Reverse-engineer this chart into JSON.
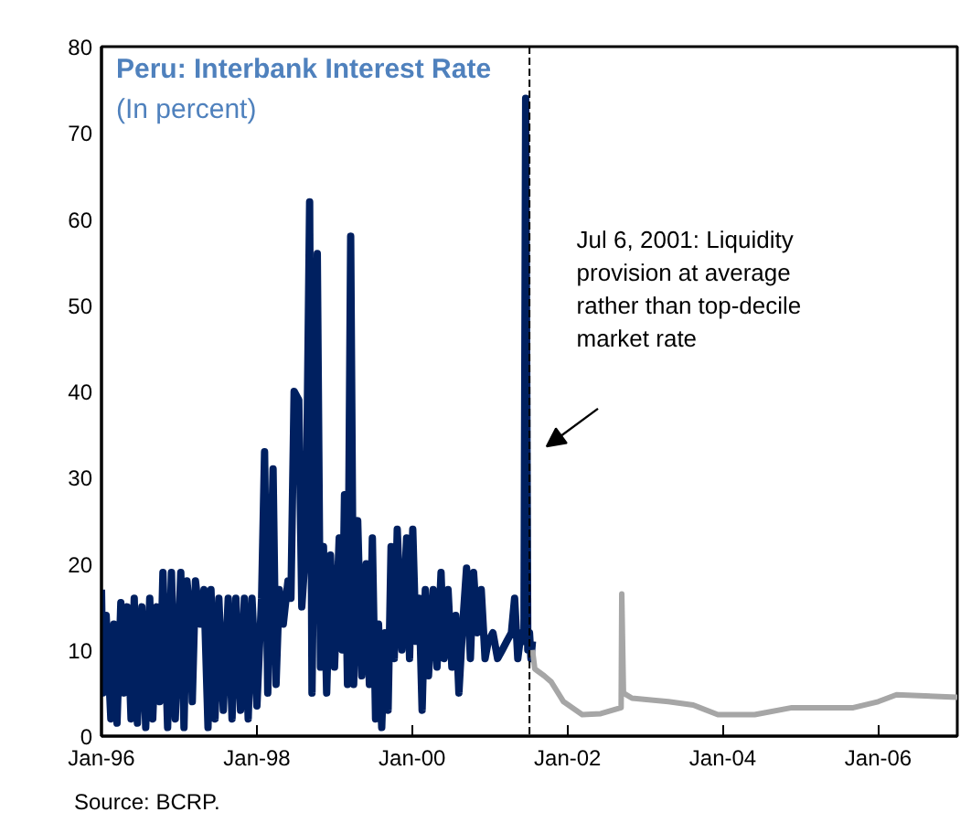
{
  "chart_data": {
    "type": "line",
    "title": "Peru: Interbank Interest Rate",
    "subtitle": "(In percent)",
    "annotations": [
      "Source: BCRP."
    ],
    "xlim": [
      "1996-01-01",
      "2007-01-08"
    ],
    "ylim": [
      0,
      80
    ],
    "xticks": [
      {
        "value": "1996-01-01",
        "label": "Jan-96"
      },
      {
        "value": "1998-01-01",
        "label": "Jan-98"
      },
      {
        "value": "2000-01-01",
        "label": "Jan-00"
      },
      {
        "value": "2002-01-01",
        "label": "Jan-02"
      },
      {
        "value": "2004-01-01",
        "label": "Jan-04"
      },
      {
        "value": "2006-01-01",
        "label": "Jan-06"
      }
    ],
    "yticks": [
      0,
      10,
      20,
      30,
      40,
      50,
      60,
      70,
      80
    ],
    "ref_lines": [
      {
        "axis": "x",
        "value": "2001-07-06",
        "label": "Jul 6, 2001: Liquidity provision at average rather than top-decile market rate",
        "color": "#000000",
        "line_style": "dashed"
      }
    ],
    "series": [
      {
        "color": "#002060",
        "x": [
          "1996-01-01",
          "1996-01-08",
          "1996-01-23",
          "1996-02-14",
          "1996-02-28",
          "1996-03-14",
          "1996-04-01",
          "1996-04-16",
          "1996-05-01",
          "1996-05-19",
          "1996-06-03",
          "1996-06-18",
          "1996-07-09",
          "1996-07-27",
          "1996-08-15",
          "1996-08-29",
          "1996-09-17",
          "1996-10-01",
          "1996-10-16",
          "1996-11-07",
          "1996-11-25",
          "1996-12-13",
          "1997-01-08",
          "1997-01-23",
          "1997-02-06",
          "1997-02-21",
          "1997-03-03",
          "1997-03-18",
          "1997-04-09",
          "1997-04-27",
          "1997-05-16",
          "1997-05-30",
          "1997-06-18",
          "1997-07-06",
          "1997-07-27",
          "1997-08-19",
          "1997-09-06",
          "1997-09-24",
          "1997-10-16",
          "1997-11-03",
          "1997-11-21",
          "1997-12-09",
          "1998-01-01",
          "1998-01-23",
          "1998-02-06",
          "1998-02-21",
          "1998-03-18",
          "1998-04-01",
          "1998-04-16",
          "1998-05-05",
          "1998-05-27",
          "1998-06-10",
          "1998-06-25",
          "1998-07-17",
          "1998-07-31",
          "1998-08-19",
          "1998-09-06",
          "1998-09-17",
          "1998-10-12",
          "1998-10-27",
          "1998-11-10",
          "1998-11-25",
          "1998-12-13",
          "1999-01-01",
          "1999-01-23",
          "1999-02-06",
          "1999-02-17",
          "1999-03-03",
          "1999-03-18",
          "1999-04-01",
          "1999-04-20",
          "1999-05-09",
          "1999-05-30",
          "1999-06-14",
          "1999-06-28",
          "1999-07-13",
          "1999-07-27",
          "1999-08-11",
          "1999-08-26",
          "1999-09-10",
          "1999-09-24",
          "1999-10-09",
          "1999-10-23",
          "1999-11-14",
          "1999-12-06",
          "1999-12-20",
          "2000-01-04",
          "2000-01-19",
          "2000-02-03",
          "2000-02-17",
          "2000-03-03",
          "2000-03-18",
          "2000-04-09",
          "2000-04-27",
          "2000-05-16",
          "2000-05-30",
          "2000-06-18",
          "2000-07-06",
          "2000-07-24",
          "2000-08-08",
          "2000-08-26",
          "2000-09-13",
          "2000-10-01",
          "2000-10-16",
          "2000-11-03",
          "2000-11-21",
          "2000-12-09",
          "2000-12-24",
          "2001-01-15",
          "2001-02-06",
          "2001-02-28",
          "2001-03-21",
          "2001-04-12",
          "2001-04-27",
          "2001-05-12",
          "2001-05-27",
          "2001-06-10",
          "2001-06-18",
          "2001-06-28",
          "2001-07-06",
          "2001-07-13",
          "2001-07-20"
        ],
        "values": [
          17,
          5,
          14,
          2,
          13,
          1.5,
          15.5,
          5,
          15,
          2,
          16,
          1.5,
          15,
          1,
          16,
          2,
          15,
          4,
          19,
          1,
          19,
          2,
          19,
          1,
          18,
          14,
          4,
          18,
          13,
          17,
          1,
          17,
          2,
          16,
          3,
          16,
          2,
          16,
          3,
          16,
          2,
          16,
          3.5,
          16,
          33,
          5,
          31,
          6,
          17,
          13,
          18,
          16,
          40,
          39,
          15,
          22,
          62,
          5,
          56,
          8,
          22,
          5,
          21,
          8,
          23,
          10,
          28,
          6,
          58,
          6,
          25,
          7,
          20,
          6,
          23,
          2,
          13,
          1,
          12,
          3,
          22,
          9,
          24,
          10,
          23,
          9,
          24,
          11,
          16,
          3,
          17,
          7,
          17,
          8,
          19,
          9,
          17,
          8,
          14,
          5,
          13,
          19.5,
          9,
          19,
          12,
          17,
          9,
          11,
          12,
          9,
          10,
          11,
          12,
          16,
          9,
          12,
          11,
          74,
          10,
          12,
          9,
          11
        ]
      },
      {
        "color": "#a6a6a6",
        "x": [
          "2001-07-20",
          "2001-07-31",
          "2001-09-13",
          "2001-10-16",
          "2001-12-13",
          "2002-03-11",
          "2002-06-06",
          "2002-09-10",
          "2002-09-13",
          "2002-09-21",
          "2002-10-31",
          "2003-04-20",
          "2003-08-15",
          "2003-12-09",
          "2004-05-30",
          "2004-11-21",
          "2005-09-06",
          "2006-01-01",
          "2006-03-28",
          "2007-01-08"
        ],
        "values": [
          10,
          7.8,
          7,
          6.3,
          4,
          2.5,
          2.6,
          3.3,
          16.5,
          5,
          4.4,
          4,
          3.6,
          2.5,
          2.5,
          3.3,
          3.3,
          4,
          4.8,
          4.5
        ]
      }
    ]
  }
}
